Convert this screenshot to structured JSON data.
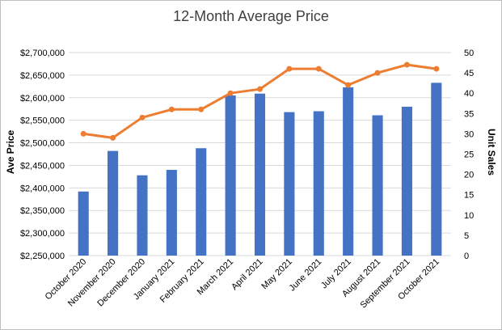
{
  "chart_data": {
    "type": "bar",
    "title": "12-Month Average Price",
    "ylabel": "Ave Price",
    "y2label": "Unit Sales",
    "categories": [
      "October 2020",
      "November 2020",
      "December 2020",
      "January 2021",
      "February 2021",
      "March 2021",
      "April 2021",
      "May 2021",
      "June 2021",
      "July 2021",
      "August 2021",
      "September 2021",
      "October 2021"
    ],
    "ylim": [
      2250000,
      2700000
    ],
    "y_ticks": [
      2250000,
      2300000,
      2350000,
      2400000,
      2450000,
      2500000,
      2550000,
      2600000,
      2650000,
      2700000
    ],
    "y_tick_labels": [
      "$2,250,000",
      "$2,300,000",
      "$2,350,000",
      "$2,400,000",
      "$2,450,000",
      "$2,500,000",
      "$2,550,000",
      "$2,600,000",
      "$2,650,000",
      "$2,700,000"
    ],
    "y2lim": [
      0,
      50
    ],
    "y2_ticks": [
      0,
      5,
      10,
      15,
      20,
      25,
      30,
      35,
      40,
      45,
      50
    ],
    "y2_tick_labels": [
      "0",
      "5",
      "10",
      "15",
      "20",
      "25",
      "30",
      "35",
      "40",
      "45",
      "50"
    ],
    "grid": true,
    "legend": "none",
    "series": [
      {
        "type": "bar",
        "axis": "left",
        "color": "#4472c4",
        "values": [
          2392000,
          2482000,
          2428000,
          2440000,
          2488000,
          2605000,
          2609000,
          2568000,
          2570000,
          2623000,
          2561000,
          2580000,
          2633000
        ]
      },
      {
        "type": "line",
        "axis": "right",
        "color": "#ed7d31",
        "values": [
          30,
          29,
          34,
          36,
          36,
          40,
          41,
          46,
          46,
          42,
          45,
          47,
          46
        ]
      }
    ]
  }
}
